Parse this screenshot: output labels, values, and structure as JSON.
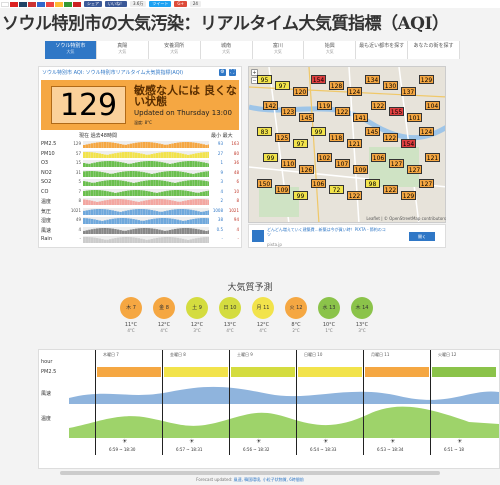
{
  "topbar": {
    "share_fb": "シェア",
    "like": "いいね！",
    "like_count": "3.6万",
    "tweet": "ツイート",
    "gplus": "24"
  },
  "title": "ソウル特別市の大気汚染：リアルタイム大気質指標（AQI）",
  "nav": [
    {
      "label": "ソウル特別市",
      "sub": "大気"
    },
    {
      "label": "真陽",
      "sub": "大気"
    },
    {
      "label": "安養洞所",
      "sub": "大気"
    },
    {
      "label": "城南",
      "sub": "大気"
    },
    {
      "label": "富川",
      "sub": "大気"
    },
    {
      "label": "始興",
      "sub": "大気"
    },
    {
      "label": "最も近い都市を探す",
      "sub": ""
    },
    {
      "label": "あなたの街を探す",
      "sub": ""
    }
  ],
  "panel": {
    "title": "ソウル特別市 AQI: ソウル特別市リアルタイム大気質指標(AQI)",
    "aqi": "129",
    "status": "敏感な人には 良くない状態",
    "update": "Updated on Thursday 13:00",
    "temp": "温度: 8°C",
    "hist_header": "現在 過去48時間",
    "minmax_header": "最小 最大",
    "rows": [
      {
        "name": "PM2.5",
        "cur": "129",
        "min": "93",
        "max": "163",
        "color": "#f5a742"
      },
      {
        "name": "PM10",
        "cur": "57",
        "min": "27",
        "max": "80",
        "color": "#f2e34b"
      },
      {
        "name": "O3",
        "cur": "15",
        "min": "1",
        "max": "36",
        "color": "#6bbf4e"
      },
      {
        "name": "NO2",
        "cur": "31",
        "min": "9",
        "max": "48",
        "color": "#6bbf4e"
      },
      {
        "name": "SO2",
        "cur": "5",
        "min": "3",
        "max": "6",
        "color": "#6bbf4e"
      },
      {
        "name": "CO",
        "cur": "7",
        "min": "4",
        "max": "10",
        "color": "#6bbf4e"
      },
      {
        "name": "温度",
        "cur": "8",
        "min": "2",
        "max": "8",
        "color": "#f3a6a0"
      },
      {
        "name": "気圧",
        "cur": "1021",
        "min": "1008",
        "max": "1021",
        "color": "#6fa8dc"
      },
      {
        "name": "湿度",
        "cur": "49",
        "min": "38",
        "max": "94",
        "color": "#6fa8dc"
      },
      {
        "name": "風速",
        "cur": "4",
        "min": "0.5",
        "max": "4",
        "color": "#888888"
      },
      {
        "name": "Rain",
        "cur": "-",
        "min": "-",
        "max": "-",
        "color": "#cccccc"
      }
    ]
  },
  "map": {
    "markers": [
      "95",
      "97",
      "120",
      "154",
      "128",
      "124",
      "134",
      "130",
      "137",
      "129",
      "142",
      "123",
      "145",
      "119",
      "122",
      "141",
      "122",
      "155",
      "101",
      "104",
      "83",
      "125",
      "97",
      "99",
      "118",
      "121",
      "145",
      "122",
      "154",
      "124",
      "99",
      "110",
      "126",
      "102",
      "107",
      "109",
      "106",
      "127",
      "127",
      "121",
      "150",
      "109",
      "99",
      "106",
      "72",
      "122",
      "98",
      "122",
      "129",
      "127"
    ],
    "attribution": "Leaflet | © OpenStreetMap contributors"
  },
  "ad": {
    "text": "どんどん増えていく建築費…新築は今が買い時！PIXTA - 節約のコツ",
    "sub": "pixta.jp",
    "button": "開く"
  },
  "forecast": {
    "title": "大気質予測",
    "days": [
      {
        "label": "木 7",
        "hi": "11°C",
        "lo": "4°C",
        "color": "#f5a742"
      },
      {
        "label": "金 8",
        "hi": "12°C",
        "lo": "4°C",
        "color": "#f5a742"
      },
      {
        "label": "土 9",
        "hi": "12°C",
        "lo": "3°C",
        "color": "#d4dc3f"
      },
      {
        "label": "日 10",
        "hi": "13°C",
        "lo": "4°C",
        "color": "#d4dc3f"
      },
      {
        "label": "月 11",
        "hi": "12°C",
        "lo": "4°C",
        "color": "#f2e34b"
      },
      {
        "label": "火 12",
        "hi": "8°C",
        "lo": "2°C",
        "color": "#f5a742"
      },
      {
        "label": "水 13",
        "hi": "10°C",
        "lo": "1°C",
        "color": "#8bc34a"
      },
      {
        "label": "木 14",
        "hi": "13°C",
        "lo": "3°C",
        "color": "#8bc34a"
      }
    ]
  },
  "chart": {
    "labels": {
      "hour": "hour",
      "pm": "PM2.5",
      "wind": "風速",
      "temp": "温度"
    },
    "dayheaders": [
      "木曜日 7",
      "金曜日 8",
      "土曜日 9",
      "日曜日 10",
      "月曜日 11",
      "火曜日 12"
    ],
    "sun": [
      "6:59 ~ 18:30",
      "6:57 ~ 18:31",
      "6:56 ~ 18:32",
      "6:54 ~ 18:33",
      "6:53 ~ 18:34",
      "6:51 ~ 18"
    ]
  },
  "footer": {
    "text": "Forecast updated: ",
    "links": "風速, 韓国環境, 小粒子状物質, 6時間前"
  }
}
